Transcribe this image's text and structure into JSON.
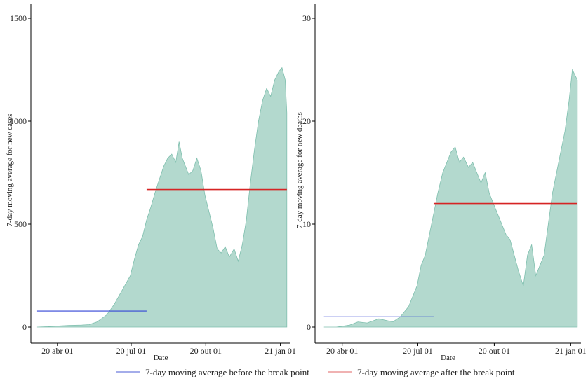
{
  "legend": {
    "before_label": "7-day moving average before the break point",
    "after_label": "7-day moving average after the break point",
    "before_color": "#4a5bd4",
    "after_color": "#e06464"
  },
  "colors": {
    "area_fill": "#b3d9ce",
    "area_stroke": "#7fbfae",
    "before_line": "#3345d6",
    "after_line": "#d62424"
  },
  "chart_data": [
    {
      "type": "area",
      "xlabel": "Date",
      "ylabel": "7-day moving average for new cases",
      "ylim": [
        0,
        1500
      ],
      "yticks": [
        0,
        500,
        1000,
        1500
      ],
      "xticks": [
        "20 abr 01",
        "20 jul 01",
        "20 out 01",
        "21 jan 01"
      ],
      "xlim": [
        "2020-03-01",
        "2021-01-10"
      ],
      "grid": false,
      "series": [
        {
          "x": [
            "2020-03-07",
            "2020-03-20",
            "2020-04-01",
            "2020-04-15",
            "2020-05-01",
            "2020-05-10",
            "2020-05-20",
            "2020-06-01",
            "2020-06-10",
            "2020-06-20",
            "2020-06-30",
            "2020-07-05",
            "2020-07-10",
            "2020-07-15",
            "2020-07-20",
            "2020-07-25",
            "2020-07-31",
            "2020-08-05",
            "2020-08-10",
            "2020-08-15",
            "2020-08-20",
            "2020-08-25",
            "2020-08-29",
            "2020-09-02",
            "2020-09-06",
            "2020-09-10",
            "2020-09-15",
            "2020-09-20",
            "2020-09-25",
            "2020-09-30",
            "2020-10-05",
            "2020-10-10",
            "2020-10-15",
            "2020-10-20",
            "2020-10-25",
            "2020-10-30",
            "2020-11-05",
            "2020-11-10",
            "2020-11-15",
            "2020-11-20",
            "2020-11-25",
            "2020-11-30",
            "2020-12-05",
            "2020-12-10",
            "2020-12-15",
            "2020-12-20",
            "2020-12-25",
            "2020-12-30",
            "2021-01-03",
            "2021-01-07",
            "2021-01-09"
          ],
          "values": [
            0,
            2,
            5,
            8,
            10,
            12,
            25,
            60,
            110,
            180,
            250,
            330,
            400,
            440,
            520,
            580,
            660,
            720,
            780,
            820,
            840,
            800,
            900,
            820,
            780,
            740,
            760,
            820,
            760,
            640,
            560,
            480,
            380,
            360,
            390,
            340,
            380,
            320,
            400,
            520,
            700,
            860,
            1000,
            1100,
            1160,
            1120,
            1200,
            1240,
            1260,
            1200,
            1040
          ]
        }
      ],
      "breakpoint_lines": [
        {
          "series": "7-day moving average before the break point",
          "x0": "2020-03-07",
          "x1": "2020-07-20",
          "y": 78
        },
        {
          "series": "7-day moving average after the break point",
          "x0": "2020-07-20",
          "x1": "2021-01-09",
          "y": 668
        }
      ]
    },
    {
      "type": "area",
      "xlabel": "Date",
      "ylabel": "7-day moving average for new deaths",
      "ylim": [
        0,
        30
      ],
      "yticks": [
        0,
        10,
        20,
        30
      ],
      "xticks": [
        "20 abr 01",
        "20 jul 01",
        "20 out 01",
        "21 jan 01"
      ],
      "xlim": [
        "2020-03-01",
        "2021-01-10"
      ],
      "grid": false,
      "series": [
        {
          "x": [
            "2020-03-10",
            "2020-03-25",
            "2020-04-10",
            "2020-04-20",
            "2020-05-01",
            "2020-05-15",
            "2020-06-01",
            "2020-06-10",
            "2020-06-20",
            "2020-06-30",
            "2020-07-05",
            "2020-07-10",
            "2020-07-15",
            "2020-07-20",
            "2020-07-25",
            "2020-07-31",
            "2020-08-05",
            "2020-08-10",
            "2020-08-15",
            "2020-08-20",
            "2020-08-25",
            "2020-08-31",
            "2020-09-05",
            "2020-09-10",
            "2020-09-15",
            "2020-09-20",
            "2020-09-25",
            "2020-09-30",
            "2020-10-05",
            "2020-10-10",
            "2020-10-15",
            "2020-10-20",
            "2020-10-25",
            "2020-10-30",
            "2020-11-05",
            "2020-11-10",
            "2020-11-15",
            "2020-11-20",
            "2020-11-25",
            "2020-11-30",
            "2020-12-05",
            "2020-12-10",
            "2020-12-15",
            "2020-12-20",
            "2020-12-25",
            "2020-12-30",
            "2021-01-03",
            "2021-01-06",
            "2021-01-09"
          ],
          "values": [
            0,
            0,
            0.2,
            0.5,
            0.4,
            0.8,
            0.5,
            1.0,
            2.0,
            4.0,
            6.0,
            7.0,
            9.0,
            11.0,
            13.0,
            15.0,
            16.0,
            17.0,
            17.5,
            16.0,
            16.5,
            15.5,
            16.0,
            15.0,
            14.0,
            15.0,
            13.0,
            12.0,
            11.0,
            10.0,
            9.0,
            8.5,
            7.0,
            5.5,
            4.0,
            7.0,
            8.0,
            5.0,
            6.0,
            7.0,
            10.0,
            13.0,
            15.0,
            17.0,
            19.0,
            22.0,
            25.0,
            24.5,
            24.0
          ]
        }
      ],
      "breakpoint_lines": [
        {
          "series": "7-day moving average before the break point",
          "x0": "2020-03-10",
          "x1": "2020-07-20",
          "y": 1.0
        },
        {
          "series": "7-day moving average after the break point",
          "x0": "2020-07-20",
          "x1": "2021-01-09",
          "y": 12.0
        }
      ]
    }
  ]
}
